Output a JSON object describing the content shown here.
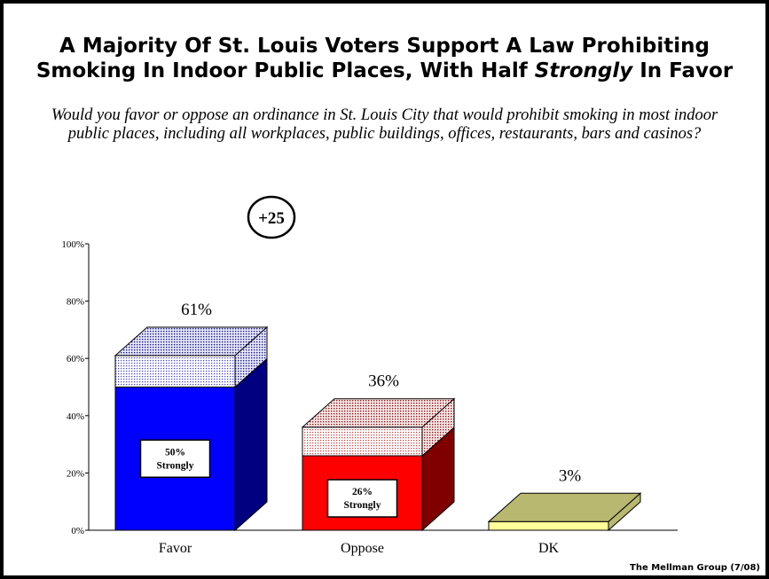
{
  "title": {
    "line1": "A Majority Of St. Louis Voters Support A Law Prohibiting",
    "line2_pre": "Smoking In Indoor Public Places, With Half ",
    "line2_em": "Strongly",
    "line2_post": " In Favor"
  },
  "question": "Would you favor or oppose an ordinance in St. Louis City that would prohibit smoking in most indoor public places, including all workplaces, public buildings, offices, restaurants, bars and casinos?",
  "footer": "The Mellman Group (7/08)",
  "net_badge": "+25",
  "chart_data": {
    "type": "bar",
    "stacked": true,
    "categories": [
      "Favor",
      "Oppose",
      "DK"
    ],
    "totals": [
      61,
      36,
      3
    ],
    "total_labels": [
      "61%",
      "36%",
      "3%"
    ],
    "strongly": [
      50,
      26,
      null
    ],
    "strongly_labels": [
      "50%\nStrongly",
      "26%\nStrongly",
      ""
    ],
    "yticks": [
      "0%",
      "20%",
      "40%",
      "60%",
      "80%",
      "100%"
    ],
    "ylim": [
      0,
      100
    ],
    "colors": {
      "favor_strong": "#0000FF",
      "favor_strong_side": "#000080",
      "favor_soft": "#C8C8F0",
      "oppose_strong": "#FF0000",
      "oppose_strong_side": "#800000",
      "oppose_soft": "#F0C8C8",
      "dk": "#FFFF99",
      "dk_top": "#B8B870"
    }
  }
}
